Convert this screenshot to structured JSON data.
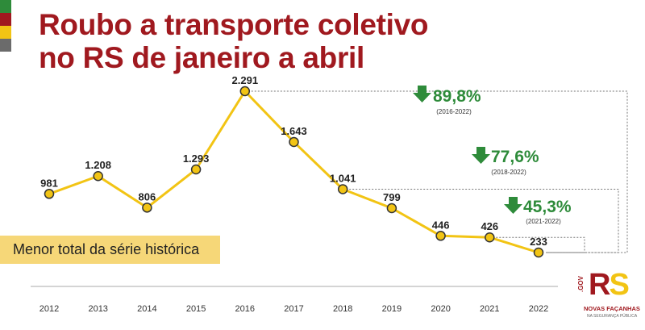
{
  "colors": {
    "stripes": [
      "#2e8b3a",
      "#a0191f",
      "#f2c414",
      "#6b6b6b"
    ],
    "title": "#a0191f",
    "line": "#f2c414",
    "marker_stroke": "#333333",
    "percent": "#2e8b3a",
    "callout_bg": "#f6d778",
    "bracket": "#777777"
  },
  "title": {
    "line1": "Roubo a transporte coletivo",
    "line2": "no RS de janeiro a abril"
  },
  "callout": {
    "text": "Menor total da série histórica"
  },
  "chart_data": {
    "type": "line",
    "x": [
      "2012",
      "2013",
      "2014",
      "2015",
      "2016",
      "2017",
      "2018",
      "2019",
      "2020",
      "2021",
      "2022"
    ],
    "values": [
      981,
      1208,
      806,
      1293,
      2291,
      1643,
      1041,
      799,
      446,
      426,
      233
    ],
    "value_labels": [
      "981",
      "1.208",
      "806",
      "1.293",
      "2.291",
      "1.643",
      "1.041",
      "799",
      "446",
      "426",
      "233"
    ],
    "title": "Roubo a transporte coletivo no RS de janeiro a abril",
    "xlabel": "",
    "ylabel": "",
    "grid": false,
    "annotations": [
      {
        "value": "89,8%",
        "period": "(2016-2022)",
        "icon": "down-arrow-icon"
      },
      {
        "value": "77,6%",
        "period": "(2018-2022)",
        "icon": "down-arrow-icon"
      },
      {
        "value": "45,3%",
        "period": "(2021-2022)",
        "icon": "down-arrow-icon"
      }
    ]
  },
  "logo": {
    "gov": ".GOV",
    "rs": "RS",
    "tagline": "NOVAS FAÇANHAS",
    "subtagline": "NA SEGURANÇA PÚBLICA",
    "icon": "rs-gov-logo-icon"
  }
}
